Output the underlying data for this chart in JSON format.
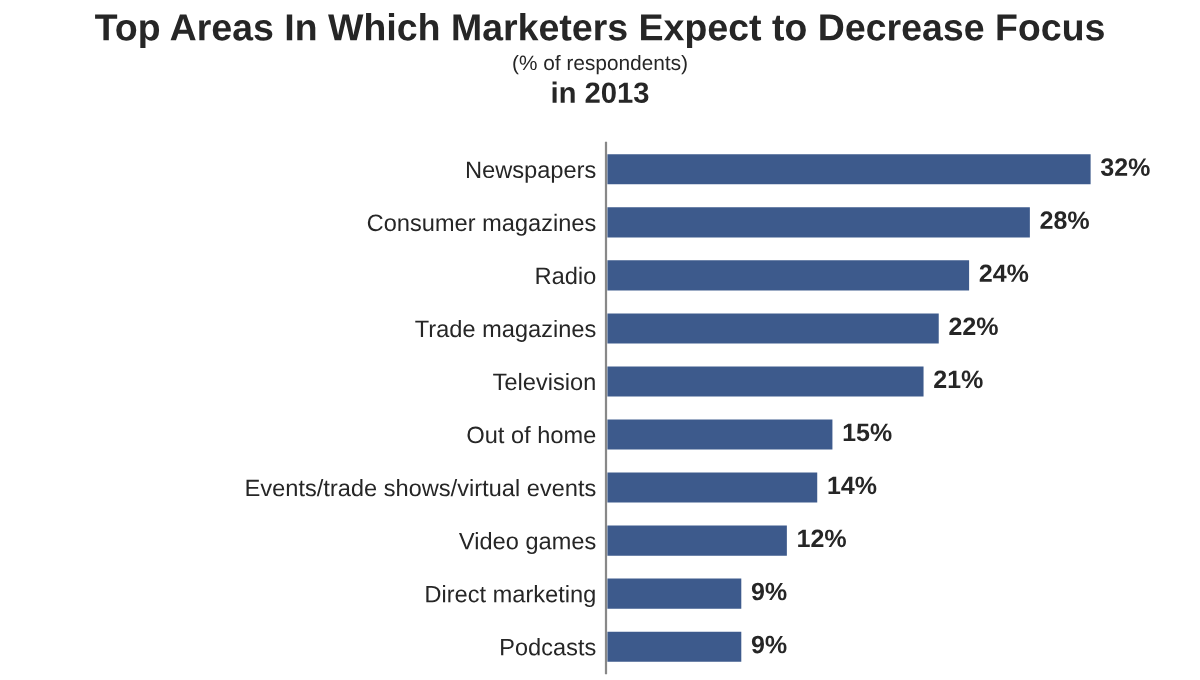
{
  "chart_data": {
    "type": "bar",
    "orientation": "horizontal",
    "title": "Top Areas In Which Marketers Expect to Decrease Focus",
    "subtitle": "(% of respondents)",
    "annotations": [
      "in 2013"
    ],
    "categories": [
      "Newspapers",
      "Consumer magazines",
      "Radio",
      "Trade magazines",
      "Television",
      "Out of home",
      "Events/trade shows/virtual events",
      "Video games",
      "Direct marketing",
      "Podcasts"
    ],
    "values": [
      32,
      28,
      24,
      22,
      21,
      15,
      14,
      12,
      9,
      9
    ],
    "value_labels": [
      "32%",
      "28%",
      "24%",
      "22%",
      "21%",
      "15%",
      "14%",
      "12%",
      "9%",
      "9%"
    ],
    "color": "#3d5a8c",
    "tick_labels": "y",
    "grid": false,
    "legend": false
  }
}
